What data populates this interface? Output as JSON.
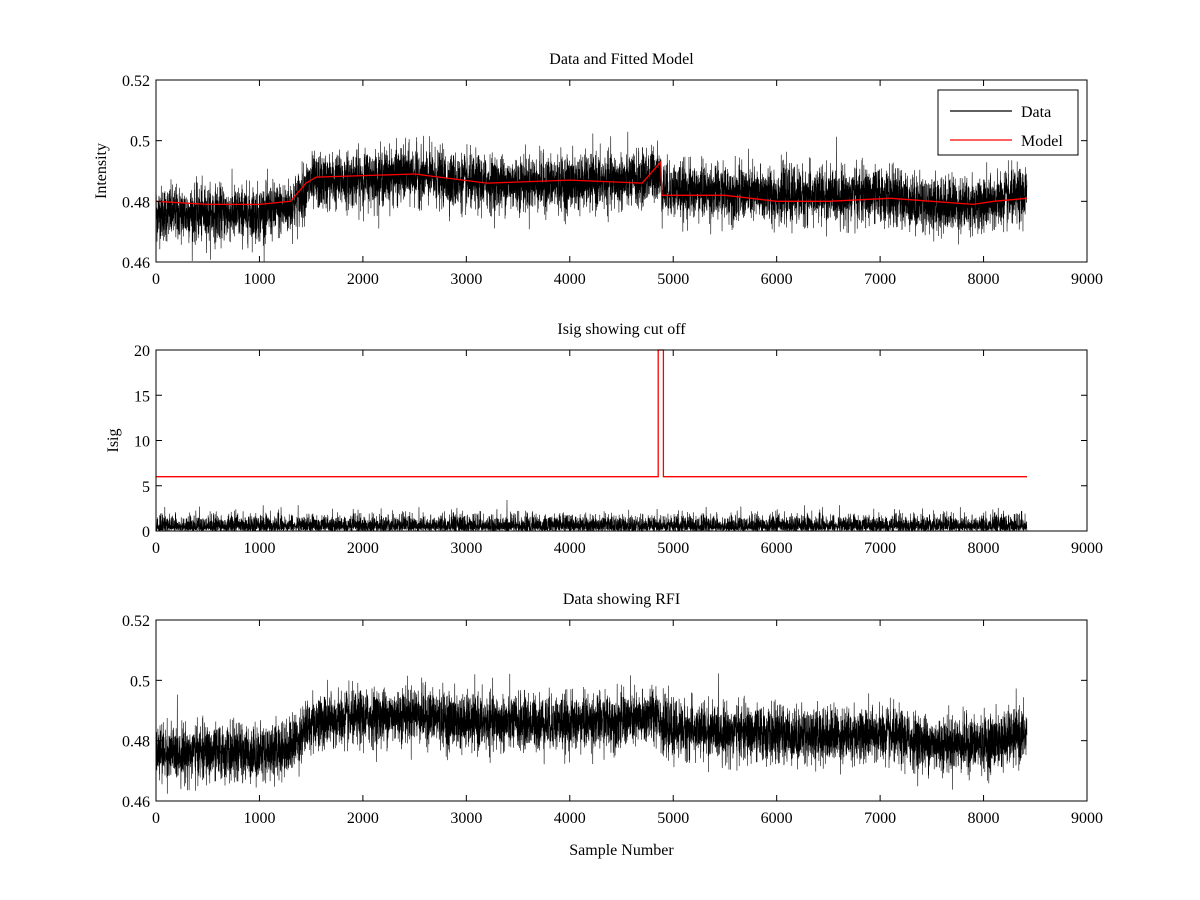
{
  "chart_data": [
    {
      "type": "line",
      "title": "Data and Fitted Model",
      "xlabel": "",
      "ylabel": "Intensity",
      "xlim": [
        0,
        9000
      ],
      "ylim": [
        0.46,
        0.52
      ],
      "xticks": [
        0,
        1000,
        2000,
        3000,
        4000,
        5000,
        6000,
        7000,
        8000,
        9000
      ],
      "yticks": [
        0.46,
        0.48,
        0.5,
        0.52
      ],
      "ytick_labels": [
        "0.46",
        "0.48",
        "0.5",
        "0.52"
      ],
      "legend": {
        "placement": "top-right",
        "entries": [
          "Data",
          "Model"
        ]
      },
      "series": [
        {
          "name": "Data",
          "color": "#000000",
          "n_samples": 8420,
          "noise_std": 0.0045,
          "trend": [
            [
              0,
              0.476
            ],
            [
              1000,
              0.476
            ],
            [
              1300,
              0.478
            ],
            [
              1500,
              0.486
            ],
            [
              2500,
              0.489
            ],
            [
              3000,
              0.486
            ],
            [
              4000,
              0.486
            ],
            [
              4700,
              0.487
            ],
            [
              4850,
              0.49
            ],
            [
              4900,
              0.484
            ],
            [
              6000,
              0.482
            ],
            [
              7000,
              0.482
            ],
            [
              7500,
              0.479
            ],
            [
              8000,
              0.479
            ],
            [
              8420,
              0.482
            ]
          ]
        },
        {
          "name": "Model",
          "color": "#ff0000",
          "points": [
            [
              0,
              0.48
            ],
            [
              500,
              0.479
            ],
            [
              1000,
              0.479
            ],
            [
              1300,
              0.48
            ],
            [
              1450,
              0.486
            ],
            [
              1550,
              0.488
            ],
            [
              2500,
              0.489
            ],
            [
              3200,
              0.486
            ],
            [
              4000,
              0.487
            ],
            [
              4700,
              0.486
            ],
            [
              4880,
              0.493
            ],
            [
              4890,
              0.482
            ],
            [
              5000,
              0.482
            ],
            [
              5500,
              0.482
            ],
            [
              6000,
              0.48
            ],
            [
              6500,
              0.48
            ],
            [
              7100,
              0.481
            ],
            [
              7500,
              0.48
            ],
            [
              7900,
              0.479
            ],
            [
              8100,
              0.48
            ],
            [
              8420,
              0.481
            ]
          ]
        }
      ]
    },
    {
      "type": "line",
      "title": "Isig showing cut off",
      "xlabel": "",
      "ylabel": "Isig",
      "xlim": [
        0,
        9000
      ],
      "ylim": [
        0,
        20
      ],
      "xticks": [
        0,
        1000,
        2000,
        3000,
        4000,
        5000,
        6000,
        7000,
        8000,
        9000
      ],
      "yticks": [
        0,
        5,
        10,
        15,
        20
      ],
      "ytick_labels": [
        "0",
        "5",
        "10",
        "15",
        "20"
      ],
      "series": [
        {
          "name": "Isig",
          "color": "#000000",
          "n_samples": 8420,
          "noise_scale": 0.8
        },
        {
          "name": "Cut off",
          "color": "#ff0000",
          "points": [
            [
              0,
              6
            ],
            [
              4855,
              6
            ],
            [
              4855,
              20
            ],
            [
              4905,
              20
            ],
            [
              4905,
              6
            ],
            [
              8420,
              6
            ]
          ]
        }
      ]
    },
    {
      "type": "line",
      "title": "Data showing RFI",
      "xlabel": "Sample Number",
      "ylabel": "",
      "xlim": [
        0,
        9000
      ],
      "ylim": [
        0.46,
        0.52
      ],
      "xticks": [
        0,
        1000,
        2000,
        3000,
        4000,
        5000,
        6000,
        7000,
        8000,
        9000
      ],
      "yticks": [
        0.46,
        0.48,
        0.5,
        0.52
      ],
      "ytick_labels": [
        "0.46",
        "0.48",
        "0.5",
        "0.52"
      ],
      "series": [
        {
          "name": "Data",
          "color": "#000000",
          "n_samples": 8420,
          "noise_std": 0.0045,
          "trend": [
            [
              0,
              0.476
            ],
            [
              1000,
              0.476
            ],
            [
              1300,
              0.478
            ],
            [
              1500,
              0.486
            ],
            [
              2500,
              0.489
            ],
            [
              3000,
              0.486
            ],
            [
              4000,
              0.486
            ],
            [
              4700,
              0.487
            ],
            [
              4850,
              0.49
            ],
            [
              4900,
              0.484
            ],
            [
              6000,
              0.482
            ],
            [
              7000,
              0.482
            ],
            [
              7500,
              0.479
            ],
            [
              8000,
              0.479
            ],
            [
              8420,
              0.482
            ]
          ]
        }
      ]
    }
  ]
}
